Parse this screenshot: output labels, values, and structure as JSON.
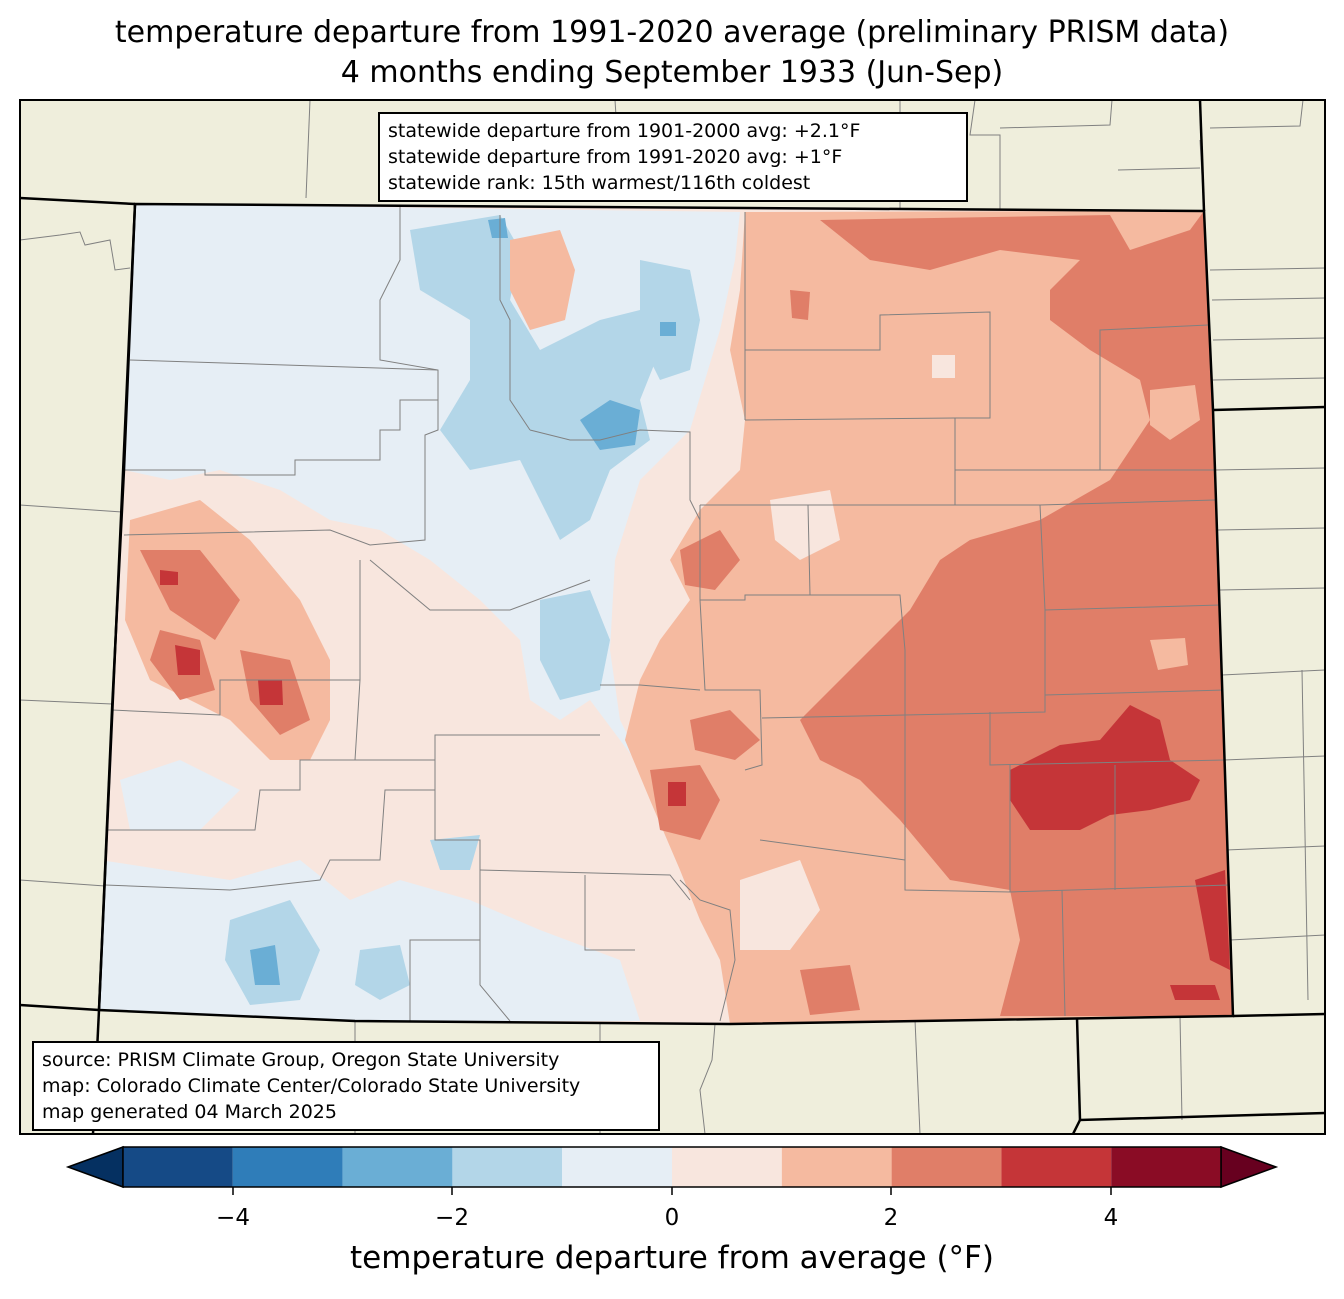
{
  "title": {
    "line1": "temperature departure from 1991-2020 average (preliminary PRISM data)",
    "line2": "4 months ending September 1933 (Jun-Sep)"
  },
  "stats_box": {
    "line1": "statewide departure from 1901-2000 avg: +2.1°F",
    "line2": "statewide departure from 1991-2020 avg: +1°F",
    "line3": "statewide rank: 15th warmest/116th coldest"
  },
  "source_box": {
    "line1": "source: PRISM Climate Group, Oregon State University",
    "line2": "map: Colorado Climate Center/Colorado State University",
    "line3": "map generated 04 March 2025"
  },
  "colorbar": {
    "label": "temperature departure from average (°F)",
    "ticks": [
      "−4",
      "−2",
      "0",
      "2",
      "4"
    ],
    "bins": [
      -5,
      -4,
      -3,
      -2,
      -1,
      0,
      1,
      2,
      3,
      4,
      5
    ],
    "colors": [
      "#154a86",
      "#2f7db9",
      "#6aaed5",
      "#b3d6e8",
      "#e6eef5",
      "#f8e6de",
      "#f5baa0",
      "#e07e68",
      "#c53538",
      "#8a0c25"
    ],
    "under_color": "#053061",
    "over_color": "#67001f"
  },
  "map_colors": {
    "background": "#efeedc",
    "state_border": "#000000",
    "county_lines": "#808080"
  }
}
